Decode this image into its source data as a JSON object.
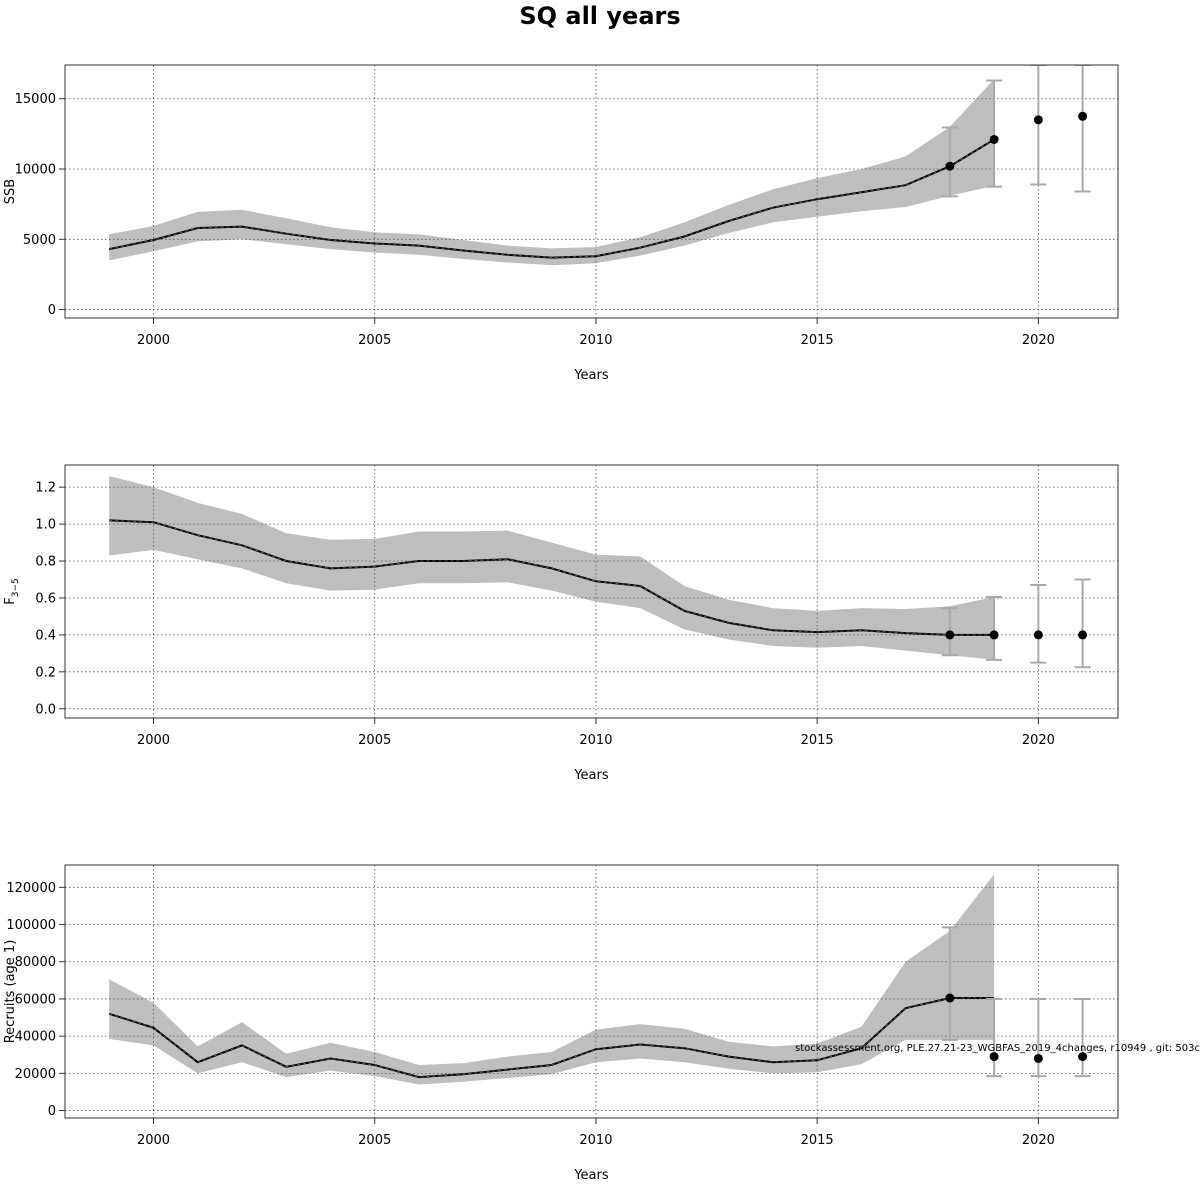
{
  "figure": {
    "title": "SQ all years",
    "footnote": "stockassessment.org, PLE.27.21-23_WGBFAS_2019_4changes, r10949 , git: 503c"
  },
  "colors": {
    "band": "#bebebe",
    "line": "#000000",
    "errorbar": "#a9a9a9",
    "grid": "#555555"
  },
  "chart_data": [
    {
      "type": "line",
      "title": "",
      "xlabel": "Years",
      "ylabel": "SSB",
      "xlim": [
        1998,
        2021.8
      ],
      "ylim": [
        -600,
        17400
      ],
      "xticks": [
        2000,
        2005,
        2010,
        2015,
        2020
      ],
      "xtick_labels": [
        "2000",
        "2005",
        "2010",
        "2015",
        "2020"
      ],
      "yticks": [
        0,
        5000,
        10000,
        15000
      ],
      "ytick_labels": [
        "0",
        "5000",
        "10000",
        "15000"
      ],
      "grid": true,
      "x": [
        1999,
        2000,
        2001,
        2002,
        2003,
        2004,
        2005,
        2006,
        2007,
        2008,
        2009,
        2010,
        2011,
        2012,
        2013,
        2014,
        2015,
        2016,
        2017,
        2018,
        2019
      ],
      "y": [
        4300,
        4950,
        5800,
        5900,
        5400,
        4950,
        4700,
        4550,
        4200,
        3900,
        3700,
        3800,
        4400,
        5200,
        6300,
        7250,
        7850,
        8350,
        8850,
        10200,
        12100
      ],
      "lower": [
        3500,
        4150,
        4850,
        5000,
        4650,
        4300,
        4050,
        3900,
        3600,
        3350,
        3150,
        3300,
        3850,
        4550,
        5450,
        6200,
        6600,
        7000,
        7300,
        8100,
        8800
      ],
      "upper": [
        5350,
        5950,
        6950,
        7100,
        6500,
        5850,
        5500,
        5350,
        4950,
        4550,
        4350,
        4450,
        5150,
        6200,
        7450,
        8550,
        9350,
        10000,
        10900,
        13000,
        16400
      ],
      "points": [
        {
          "x": 2018,
          "y": 10200,
          "lower": 8050,
          "upper": 12950
        },
        {
          "x": 2019,
          "y": 12100,
          "lower": 8750,
          "upper": 16300
        },
        {
          "x": 2020,
          "y": 13500,
          "lower": 8900,
          "upper": 17400
        },
        {
          "x": 2021,
          "y": 13750,
          "lower": 8400,
          "upper": 17400
        }
      ]
    },
    {
      "type": "line",
      "title": "",
      "xlabel": "Years",
      "ylabel": "F3-5",
      "ylabel_main": "F",
      "ylabel_sub": "3−5",
      "xlim": [
        1998,
        2021.8
      ],
      "ylim": [
        -0.05,
        1.32
      ],
      "xticks": [
        2000,
        2005,
        2010,
        2015,
        2020
      ],
      "xtick_labels": [
        "2000",
        "2005",
        "2010",
        "2015",
        "2020"
      ],
      "yticks": [
        0.0,
        0.2,
        0.4,
        0.6,
        0.8,
        1.0,
        1.2
      ],
      "ytick_labels": [
        "0.0",
        "0.2",
        "0.4",
        "0.6",
        "0.8",
        "1.0",
        "1.2"
      ],
      "grid": true,
      "x": [
        1999,
        2000,
        2001,
        2002,
        2003,
        2004,
        2005,
        2006,
        2007,
        2008,
        2009,
        2010,
        2011,
        2012,
        2013,
        2014,
        2015,
        2016,
        2017,
        2018,
        2019
      ],
      "y": [
        1.02,
        1.01,
        0.94,
        0.885,
        0.8,
        0.76,
        0.77,
        0.8,
        0.8,
        0.81,
        0.76,
        0.69,
        0.665,
        0.53,
        0.465,
        0.425,
        0.415,
        0.425,
        0.41,
        0.4,
        0.4
      ],
      "lower": [
        0.83,
        0.86,
        0.81,
        0.76,
        0.68,
        0.64,
        0.645,
        0.68,
        0.68,
        0.685,
        0.64,
        0.58,
        0.545,
        0.43,
        0.375,
        0.34,
        0.33,
        0.34,
        0.315,
        0.29,
        0.265
      ],
      "upper": [
        1.26,
        1.2,
        1.115,
        1.055,
        0.95,
        0.915,
        0.92,
        0.96,
        0.96,
        0.965,
        0.9,
        0.835,
        0.825,
        0.665,
        0.59,
        0.545,
        0.53,
        0.545,
        0.54,
        0.555,
        0.605
      ],
      "points": [
        {
          "x": 2018,
          "y": 0.4,
          "lower": 0.29,
          "upper": 0.545
        },
        {
          "x": 2019,
          "y": 0.4,
          "lower": 0.265,
          "upper": 0.605
        },
        {
          "x": 2020,
          "y": 0.4,
          "lower": 0.25,
          "upper": 0.67
        },
        {
          "x": 2021,
          "y": 0.4,
          "lower": 0.225,
          "upper": 0.7
        }
      ]
    },
    {
      "type": "line",
      "title": "",
      "xlabel": "Years",
      "ylabel": "Recruits (age 1)",
      "xlim": [
        1998,
        2021.8
      ],
      "ylim": [
        -4000,
        132000
      ],
      "xticks": [
        2000,
        2005,
        2010,
        2015,
        2020
      ],
      "xtick_labels": [
        "2000",
        "2005",
        "2010",
        "2015",
        "2020"
      ],
      "yticks": [
        0,
        20000,
        40000,
        60000,
        80000,
        100000,
        120000
      ],
      "ytick_labels": [
        "0",
        "20000",
        "40000",
        "60000",
        "80000",
        "100000",
        "120000"
      ],
      "grid": true,
      "x": [
        1999,
        2000,
        2001,
        2002,
        2003,
        2004,
        2005,
        2006,
        2007,
        2008,
        2009,
        2010,
        2011,
        2012,
        2013,
        2014,
        2015,
        2016,
        2017,
        2018,
        2019
      ],
      "y": [
        52000,
        44500,
        26000,
        35000,
        23500,
        28000,
        24500,
        18000,
        19500,
        22000,
        24500,
        33000,
        35500,
        33500,
        29000,
        26000,
        27000,
        33500,
        55000,
        60500,
        60500
      ],
      "lower": [
        38500,
        35000,
        20000,
        26000,
        18000,
        21500,
        18500,
        14000,
        15500,
        17500,
        19500,
        26000,
        28000,
        26000,
        22500,
        20000,
        20500,
        25000,
        38000,
        38000,
        38000
      ],
      "upper": [
        70500,
        58000,
        34500,
        47500,
        30500,
        36500,
        31500,
        24500,
        25500,
        29000,
        31500,
        43500,
        46500,
        44000,
        37000,
        34500,
        36000,
        45000,
        80000,
        96500,
        127000
      ],
      "points": [
        {
          "x": 2018,
          "y": 60500,
          "lower": 38000,
          "upper": 98500
        },
        {
          "x": 2019,
          "y": 29000,
          "lower": 18500,
          "upper": 60000
        },
        {
          "x": 2020,
          "y": 28000,
          "lower": 18500,
          "upper": 60000
        },
        {
          "x": 2021,
          "y": 29000,
          "lower": 18500,
          "upper": 60000
        }
      ]
    }
  ]
}
